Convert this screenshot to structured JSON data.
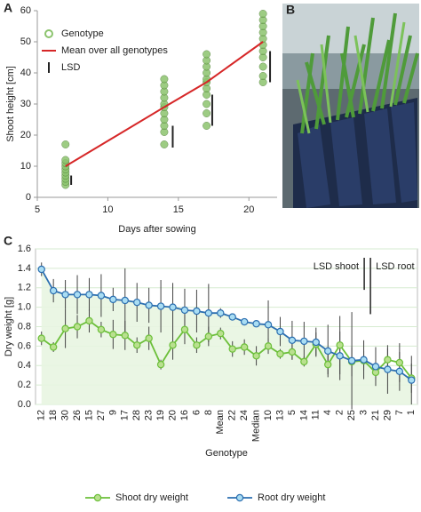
{
  "chart_data": [
    {
      "type": "scatter",
      "label": "A",
      "xlabel": "Days after sowing",
      "ylabel": "Shoot height [cm]",
      "xlim": [
        5,
        22
      ],
      "xticks": [
        5,
        10,
        15,
        20
      ],
      "ylim": [
        0,
        60
      ],
      "yticks": [
        0,
        10,
        20,
        30,
        40,
        50,
        60
      ],
      "legend": "top-left",
      "series": [
        {
          "name": "Genotype",
          "type": "scatter",
          "color": "#8cc46e",
          "x": [
            7,
            7,
            7,
            7,
            7,
            7,
            7,
            7,
            7,
            7,
            14,
            14,
            14,
            14,
            14,
            14,
            14,
            14,
            14,
            14,
            14,
            17,
            17,
            17,
            17,
            17,
            17,
            17,
            17,
            17,
            17,
            17,
            21,
            21,
            21,
            21,
            21,
            21,
            21,
            21,
            21,
            21,
            21
          ],
          "values": [
            4,
            5,
            6,
            7,
            8,
            9,
            10,
            11,
            12,
            17,
            17,
            21,
            23,
            25,
            27,
            29,
            30,
            32,
            34,
            36,
            38,
            23,
            27,
            30,
            33,
            35,
            37,
            38,
            40,
            42,
            44,
            46,
            37,
            39,
            42,
            45,
            47,
            49,
            51,
            53,
            55,
            57,
            59
          ]
        },
        {
          "name": "Mean over all genotypes",
          "type": "line",
          "color": "#d62728",
          "x": [
            7,
            14,
            17,
            21
          ],
          "values": [
            10,
            29,
            37,
            50
          ]
        },
        {
          "name": "LSD",
          "type": "lsd",
          "color": "#222222",
          "x": [
            7.4,
            14.6,
            17.4,
            21.5
          ],
          "low": [
            4,
            16,
            23,
            37
          ],
          "high": [
            7,
            23,
            33,
            47
          ]
        }
      ]
    },
    {
      "type": "line",
      "label": "C",
      "xlabel": "Genotype",
      "ylabel": "Dry weight [g]",
      "grid": true,
      "legend": "bottom",
      "categories": [
        "12",
        "18",
        "30",
        "26",
        "15",
        "27",
        "9",
        "17",
        "28",
        "23",
        "19",
        "20",
        "16",
        "6",
        "8",
        "Mean",
        "22",
        "24",
        "Median",
        "10",
        "13",
        "5",
        "14",
        "11",
        "4",
        "2",
        "25",
        "3",
        "21",
        "29",
        "7",
        "1"
      ],
      "ylim": [
        0,
        1.6
      ],
      "yticks": [
        {
          "value": 0,
          "label": "0.0"
        },
        0.2,
        0.4,
        0.6,
        0.8,
        {
          "value": 1,
          "label": "1.0"
        },
        1.2,
        1.4,
        1.6
      ],
      "series": [
        {
          "name": "Shoot dry weight",
          "color": "#6cbf3a",
          "values": [
            0.68,
            0.59,
            0.78,
            0.8,
            0.86,
            0.77,
            0.72,
            0.71,
            0.61,
            0.68,
            0.41,
            0.61,
            0.77,
            0.61,
            0.7,
            0.73,
            0.57,
            0.59,
            0.5,
            0.6,
            0.52,
            0.54,
            0.44,
            0.62,
            0.41,
            0.61,
            0.44,
            0.45,
            0.33,
            0.46,
            0.43,
            0.27
          ],
          "errors": [
            0.07,
            0.05,
            0.2,
            0.12,
            0.12,
            0.08,
            0.15,
            0.15,
            0.08,
            0.12,
            0.05,
            0.15,
            0.15,
            0.08,
            0.1,
            0.06,
            0.08,
            0.08,
            0.1,
            0.08,
            0.05,
            0.08,
            0.05,
            0.12,
            0.1,
            0.3,
            0.15,
            0.1,
            0.08,
            0.12,
            0.2,
            0.15
          ]
        },
        {
          "name": "Root dry weight",
          "color": "#2c6fb0",
          "marker": "#a9ddf3",
          "values": [
            1.39,
            1.17,
            1.13,
            1.13,
            1.13,
            1.12,
            1.08,
            1.07,
            1.05,
            1.02,
            1.01,
            1.0,
            0.97,
            0.96,
            0.94,
            0.94,
            0.9,
            0.85,
            0.83,
            0.82,
            0.75,
            0.66,
            0.65,
            0.64,
            0.55,
            0.5,
            0.45,
            0.46,
            0.39,
            0.36,
            0.34,
            0.25
          ],
          "errors": [
            0.07,
            0.12,
            0.15,
            0.2,
            0.17,
            0.22,
            0.12,
            0.33,
            0.2,
            0.18,
            0.27,
            0.25,
            0.22,
            0.22,
            0.3,
            0.05,
            0.03,
            0.02,
            0.02,
            0.25,
            0.15,
            0.2,
            0.2,
            0.15,
            0.27,
            0.25,
            0.5,
            0.2,
            0.2,
            0.25,
            0.2,
            0.25
          ]
        }
      ],
      "annotations": [
        {
          "text": "LSD shoot",
          "value": 0.33
        },
        {
          "text": "LSD root",
          "value": 0.58
        }
      ]
    }
  ],
  "photo": {
    "label": "B"
  }
}
